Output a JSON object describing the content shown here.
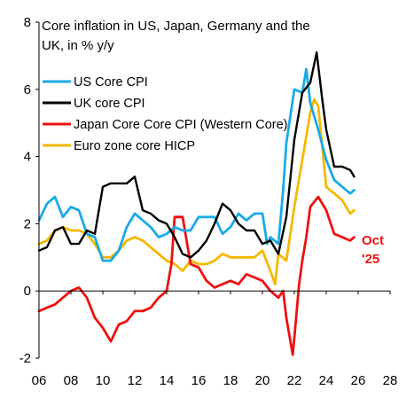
{
  "chart_data": {
    "type": "line",
    "title_lines": [
      "Core inflation in US, Japan, Germany and the",
      "UK, in % y/y"
    ],
    "xlabel": "",
    "ylabel": "",
    "xlim": [
      2006,
      2028
    ],
    "ylim": [
      -2,
      8
    ],
    "x_ticks": [
      "06",
      "08",
      "10",
      "12",
      "14",
      "16",
      "18",
      "20",
      "22",
      "24",
      "26",
      "28"
    ],
    "x_tick_values": [
      2006,
      2008,
      2010,
      2012,
      2014,
      2016,
      2018,
      2020,
      2022,
      2024,
      2026,
      2028
    ],
    "y_ticks": [
      "-2",
      "0",
      "2",
      "4",
      "6",
      "8"
    ],
    "y_tick_values": [
      -2,
      0,
      2,
      4,
      6,
      8
    ],
    "grid": false,
    "legend_position": "top-left",
    "annotation": {
      "lines": [
        "Oct",
        "'25"
      ],
      "color": "#ee1111"
    },
    "series": [
      {
        "name": "US Core CPI",
        "color": "#1aaae8",
        "x": [
          2006.0,
          2006.5,
          2007.0,
          2007.5,
          2008.0,
          2008.5,
          2009.0,
          2009.5,
          2010.0,
          2010.5,
          2011.0,
          2011.5,
          2012.0,
          2012.5,
          2013.0,
          2013.5,
          2014.0,
          2014.5,
          2015.0,
          2015.5,
          2016.0,
          2016.5,
          2017.0,
          2017.5,
          2018.0,
          2018.5,
          2019.0,
          2019.5,
          2020.0,
          2020.3,
          2020.5,
          2021.0,
          2021.3,
          2021.5,
          2022.0,
          2022.5,
          2022.75,
          2023.0,
          2023.5,
          2024.0,
          2024.5,
          2025.0,
          2025.5,
          2025.75
        ],
        "values": [
          2.1,
          2.6,
          2.8,
          2.2,
          2.5,
          2.4,
          1.7,
          1.6,
          0.9,
          0.9,
          1.2,
          1.9,
          2.3,
          2.1,
          1.9,
          1.6,
          1.7,
          1.9,
          1.8,
          1.8,
          2.2,
          2.2,
          2.2,
          1.7,
          1.9,
          2.3,
          2.1,
          2.3,
          2.3,
          1.4,
          1.6,
          1.4,
          3.0,
          4.4,
          6.0,
          5.9,
          6.6,
          5.6,
          4.8,
          3.9,
          3.3,
          3.1,
          2.9,
          3.0
        ]
      },
      {
        "name": "UK core CPI",
        "color": "#000000",
        "x": [
          2006.0,
          2006.5,
          2007.0,
          2007.5,
          2008.0,
          2008.5,
          2009.0,
          2009.5,
          2010.0,
          2010.5,
          2011.0,
          2011.5,
          2012.0,
          2012.5,
          2013.0,
          2013.5,
          2014.0,
          2014.5,
          2015.0,
          2015.5,
          2016.0,
          2016.5,
          2017.0,
          2017.5,
          2018.0,
          2018.5,
          2019.0,
          2019.5,
          2020.0,
          2020.5,
          2021.0,
          2021.5,
          2022.0,
          2022.5,
          2023.0,
          2023.4,
          2023.75,
          2024.0,
          2024.5,
          2025.0,
          2025.5,
          2025.75
        ],
        "values": [
          1.2,
          1.3,
          1.8,
          1.9,
          1.4,
          1.4,
          1.8,
          1.7,
          3.1,
          3.2,
          3.2,
          3.2,
          3.4,
          2.4,
          2.3,
          2.1,
          2.0,
          1.6,
          1.1,
          1.0,
          1.2,
          1.5,
          2.0,
          2.6,
          2.4,
          2.0,
          1.8,
          1.8,
          1.4,
          1.5,
          1.1,
          2.2,
          4.5,
          5.9,
          6.2,
          7.1,
          5.7,
          4.8,
          3.7,
          3.7,
          3.6,
          3.4
        ]
      },
      {
        "name": "Japan Core Core CPI (Western Core)",
        "color": "#ee1111",
        "x": [
          2006.0,
          2006.5,
          2007.0,
          2007.5,
          2008.0,
          2008.5,
          2009.0,
          2009.5,
          2010.0,
          2010.5,
          2011.0,
          2011.5,
          2012.0,
          2012.5,
          2013.0,
          2013.5,
          2014.0,
          2014.3,
          2014.5,
          2015.0,
          2015.5,
          2016.0,
          2016.5,
          2017.0,
          2017.5,
          2018.0,
          2018.5,
          2019.0,
          2019.5,
          2020.0,
          2020.5,
          2021.0,
          2021.3,
          2021.5,
          2021.9,
          2022.0,
          2022.3,
          2022.5,
          2022.75,
          2023.0,
          2023.5,
          2024.0,
          2024.5,
          2025.0,
          2025.5,
          2025.75
        ],
        "values": [
          -0.6,
          -0.5,
          -0.4,
          -0.2,
          0.0,
          0.1,
          -0.2,
          -0.8,
          -1.1,
          -1.5,
          -1.0,
          -0.9,
          -0.6,
          -0.6,
          -0.5,
          -0.2,
          0.0,
          0.8,
          2.2,
          2.2,
          0.8,
          0.7,
          0.3,
          0.1,
          0.2,
          0.3,
          0.2,
          0.5,
          0.4,
          0.3,
          0.0,
          -0.2,
          0.0,
          -0.8,
          -1.9,
          -1.4,
          0.2,
          0.9,
          1.6,
          2.5,
          2.8,
          2.4,
          1.7,
          1.6,
          1.5,
          1.6
        ]
      },
      {
        "name": "Euro zone core HICP",
        "color": "#f5b800",
        "x": [
          2006.0,
          2006.5,
          2007.0,
          2007.5,
          2008.0,
          2008.5,
          2009.0,
          2009.5,
          2010.0,
          2010.5,
          2011.0,
          2011.5,
          2012.0,
          2012.5,
          2013.0,
          2013.5,
          2014.0,
          2014.5,
          2015.0,
          2015.5,
          2016.0,
          2016.5,
          2017.0,
          2017.5,
          2018.0,
          2018.5,
          2019.0,
          2019.5,
          2020.0,
          2020.5,
          2020.8,
          2021.0,
          2021.5,
          2022.0,
          2022.5,
          2023.0,
          2023.25,
          2023.5,
          2024.0,
          2024.5,
          2025.0,
          2025.5,
          2025.75
        ],
        "values": [
          1.4,
          1.5,
          1.8,
          1.9,
          1.8,
          1.8,
          1.7,
          1.4,
          1.0,
          1.0,
          1.2,
          1.5,
          1.6,
          1.5,
          1.3,
          1.1,
          0.9,
          0.8,
          0.6,
          0.9,
          0.8,
          0.8,
          0.9,
          1.1,
          1.0,
          1.0,
          1.0,
          1.0,
          1.2,
          0.6,
          0.2,
          1.1,
          0.9,
          2.5,
          3.9,
          5.3,
          5.7,
          5.5,
          3.1,
          2.9,
          2.7,
          2.3,
          2.4
        ]
      }
    ]
  }
}
